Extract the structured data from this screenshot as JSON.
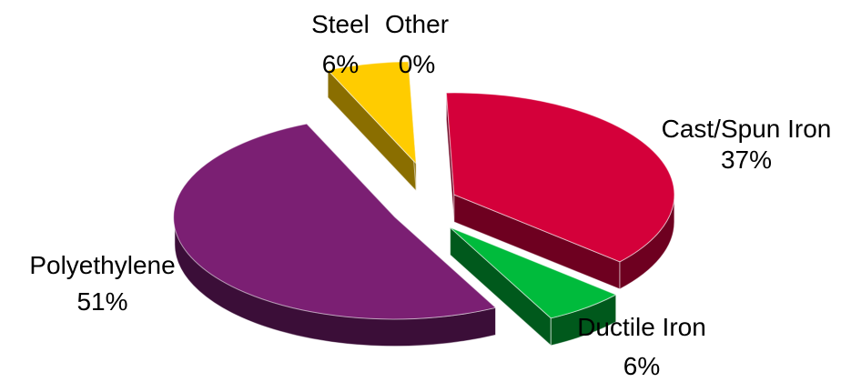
{
  "chart_data": {
    "type": "pie",
    "title": "",
    "style": "3d-exploded",
    "slices": [
      {
        "label": "Cast/Spun Iron",
        "value": 37,
        "value_label": "37%",
        "color": "#d4003a",
        "side_color": "#6e0020"
      },
      {
        "label": "Ductile Iron",
        "value": 6,
        "value_label": "6%",
        "color": "#00bb3c",
        "side_color": "#00591c"
      },
      {
        "label": "Polyethylene",
        "value": 51,
        "value_label": "51%",
        "color": "#7b1f73",
        "side_color": "#3b0e38"
      },
      {
        "label": "Steel",
        "value": 6,
        "value_label": "6%",
        "color": "#ffcc00",
        "side_color": "#8a6e00"
      },
      {
        "label": "Other",
        "value": 0,
        "value_label": "0%",
        "color": "#8899cc",
        "side_color": "#44507a"
      }
    ],
    "legend": "none"
  }
}
